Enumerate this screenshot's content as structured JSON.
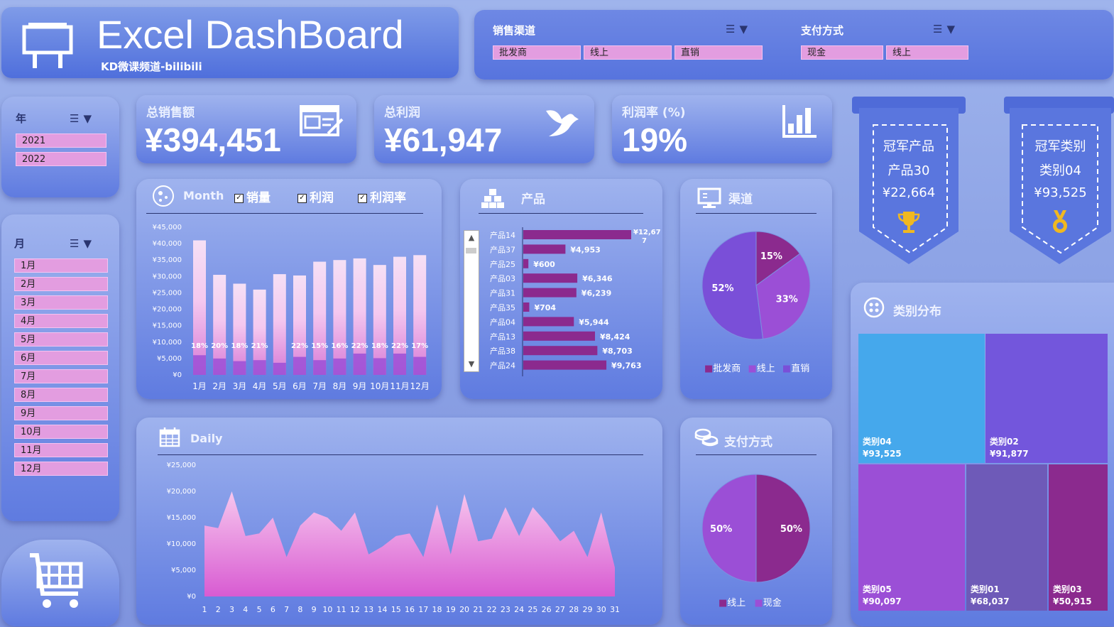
{
  "header": {
    "title": "Excel DashBoard",
    "subtitle": "KD微课频道-bilibili"
  },
  "filters": {
    "channel": {
      "label": "销售渠道",
      "options": [
        "批发商",
        "线上",
        "直销"
      ]
    },
    "payment": {
      "label": "支付方式",
      "options": [
        "现金",
        "线上"
      ]
    }
  },
  "year_slicer": {
    "label": "年",
    "options": [
      "2021",
      "2022"
    ]
  },
  "month_slicer": {
    "label": "月",
    "options": [
      "1月",
      "2月",
      "3月",
      "4月",
      "5月",
      "6月",
      "7月",
      "8月",
      "9月",
      "10月",
      "11月",
      "12月"
    ]
  },
  "kpis": {
    "sales": {
      "label": "总销售额",
      "value": "¥394,451"
    },
    "profit": {
      "label": "总利润",
      "value": "¥61,947"
    },
    "margin": {
      "label": "利润率 (%)",
      "value": "19%"
    }
  },
  "champions": {
    "product": {
      "title": "冠军产品",
      "name": "产品30",
      "value": "¥22,664"
    },
    "category": {
      "title": "冠军类别",
      "name": "类别04",
      "value": "¥93,525"
    }
  },
  "month_panel": {
    "title": "Month",
    "checks": [
      "销量",
      "利润",
      "利润率"
    ]
  },
  "product_panel": {
    "title": "产品"
  },
  "channel_panel": {
    "title": "渠道",
    "legend": [
      "批发商",
      "线上",
      "直销"
    ]
  },
  "daily_panel": {
    "title": "Daily"
  },
  "payment_panel": {
    "title": "支付方式",
    "legend": [
      "线上",
      "现金"
    ]
  },
  "category_panel": {
    "title": "类别分布"
  },
  "colors": {
    "accent": "#8b2a8e",
    "pink": "#e39de0",
    "purple": "#9b4fd6",
    "blue": "#45a8ec"
  },
  "chart_data": [
    {
      "type": "bar",
      "title": "Month",
      "categories": [
        "1月",
        "2月",
        "3月",
        "4月",
        "5月",
        "6月",
        "7月",
        "8月",
        "9月",
        "10月",
        "11月",
        "12月"
      ],
      "series": [
        {
          "name": "销量",
          "values": [
            41000,
            30500,
            27800,
            26000,
            30700,
            30300,
            34500,
            35000,
            35500,
            33500,
            36000,
            36500
          ]
        },
        {
          "name": "利润",
          "values": [
            6000,
            5000,
            4200,
            4500,
            3700,
            5500,
            4500,
            5000,
            6500,
            5100,
            6500,
            5500
          ]
        },
        {
          "name": "利润率",
          "values": [
            "18%",
            "20%",
            "18%",
            "21%",
            "",
            "22%",
            "15%",
            "16%",
            "22%",
            "18%",
            "22%",
            "17%"
          ]
        }
      ],
      "ylim": [
        0,
        45000
      ],
      "yticks": [
        "¥45,000",
        "¥40,000",
        "¥35,000",
        "¥30,000",
        "¥25,000",
        "¥20,000",
        "¥15,000",
        "¥10,000",
        "¥5,000",
        "¥0"
      ]
    },
    {
      "type": "bar",
      "title": "产品",
      "categories": [
        "产品14",
        "产品37",
        "产品25",
        "产品03",
        "产品31",
        "产品35",
        "产品04",
        "产品13",
        "产品38",
        "产品24"
      ],
      "values": [
        12677,
        4953,
        600,
        6346,
        6239,
        704,
        5944,
        8424,
        8703,
        9763
      ],
      "labels": [
        "¥12,677",
        "¥4,953",
        "¥600",
        "¥6,346",
        "¥6,239",
        "¥704",
        "¥5,944",
        "¥8,424",
        "¥8,703",
        "¥9,763"
      ]
    },
    {
      "type": "pie",
      "title": "渠道",
      "categories": [
        "批发商",
        "线上",
        "直销"
      ],
      "values": [
        15,
        33,
        52
      ],
      "labels": [
        "15%",
        "33%",
        "52%"
      ],
      "colors": [
        "#8b2a8e",
        "#9b4fd6",
        "#7a4fd8"
      ]
    },
    {
      "type": "area",
      "title": "Daily",
      "x": [
        1,
        2,
        3,
        4,
        5,
        6,
        7,
        8,
        9,
        10,
        11,
        12,
        13,
        14,
        15,
        16,
        17,
        18,
        19,
        20,
        21,
        22,
        23,
        24,
        25,
        26,
        27,
        28,
        29,
        30,
        31
      ],
      "values": [
        13500,
        13000,
        20000,
        11500,
        12000,
        15000,
        7500,
        13500,
        16000,
        15000,
        12500,
        16000,
        8000,
        9500,
        11500,
        12000,
        7500,
        17500,
        8000,
        19500,
        10500,
        11000,
        17000,
        11500,
        17000,
        14000,
        10500,
        12500,
        7500,
        16000,
        5500
      ],
      "ylim": [
        0,
        25000
      ],
      "yticks": [
        "¥25,000",
        "¥20,000",
        "¥15,000",
        "¥10,000",
        "¥5,000",
        "¥0"
      ]
    },
    {
      "type": "pie",
      "title": "支付方式",
      "categories": [
        "线上",
        "现金"
      ],
      "values": [
        50,
        50
      ],
      "labels": [
        "50%",
        "50%"
      ],
      "colors": [
        "#9b4fd6",
        "#8b2a8e"
      ]
    },
    {
      "type": "heatmap",
      "title": "类别分布",
      "categories": [
        "类别04",
        "类别02",
        "类别05",
        "类别01",
        "类别03"
      ],
      "values": [
        93525,
        91877,
        90097,
        68037,
        50915
      ],
      "labels": [
        "¥93,525",
        "¥91,877",
        "¥90,097",
        "¥68,037",
        "¥50,915"
      ]
    }
  ]
}
